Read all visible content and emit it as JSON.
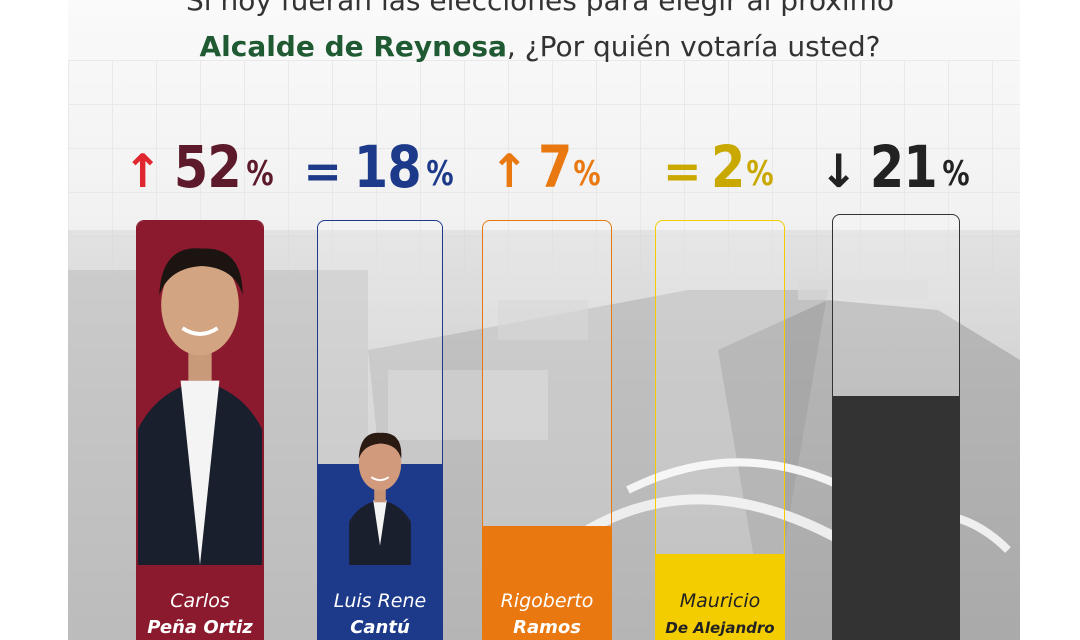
{
  "title": {
    "line1": "Si hoy fueran las elecciones para elegir al próximo",
    "line2_highlight": "Alcalde de Reynosa",
    "line2_rest": ", ¿Por quién votaría usted?"
  },
  "colors": {
    "highlight": "#1f5a33",
    "series": [
      "#8b1a2e",
      "#1d3a8a",
      "#e8780f",
      "#c9a800",
      "#333333"
    ]
  },
  "chart_data": {
    "type": "bar",
    "categories": [
      "Carlos Peña Ortiz",
      "Luis Rene Cantú",
      "Rigoberto Ramos",
      "Mauricio De Alejandro",
      ""
    ],
    "values": [
      52,
      18,
      7,
      2,
      21
    ],
    "unit": "%",
    "ylim": [
      0,
      100
    ],
    "grid": false,
    "trend": [
      "up",
      "equal",
      "up",
      "equal",
      "down"
    ]
  },
  "candidates": [
    {
      "first": "Carlos",
      "last": "Peña Ortiz",
      "trend_symbol": "↑",
      "value": "52",
      "pct": "%",
      "color": "#8b1a2e",
      "pct_color": "#5c1a2a",
      "arrow_color": "#e0262f",
      "photo": "person-photo"
    },
    {
      "first": "Luis Rene",
      "last": "Cantú",
      "trend_symbol": "=",
      "value": "18",
      "pct": "%",
      "color": "#1d3a8a",
      "pct_color": "#1d3a8a",
      "arrow_color": "#1d3a8a",
      "photo": "person-photo"
    },
    {
      "first": "Rigoberto",
      "last": "Ramos",
      "trend_symbol": "↑",
      "value": "7",
      "pct": "%",
      "color": "#e8780f",
      "pct_color": "#e8780f",
      "arrow_color": "#e8780f",
      "photo": ""
    },
    {
      "first": "Mauricio",
      "last": "De Alejandro",
      "trend_symbol": "=",
      "value": "2",
      "pct": "%",
      "color": "#f3cd00",
      "pct_color": "#c9a800",
      "arrow_color": "#c9a800",
      "photo": ""
    },
    {
      "first": "",
      "last": "",
      "trend_symbol": "↓",
      "value": "21",
      "pct": "%",
      "color": "#333333",
      "pct_color": "#222222",
      "arrow_color": "#222222",
      "photo": ""
    }
  ]
}
